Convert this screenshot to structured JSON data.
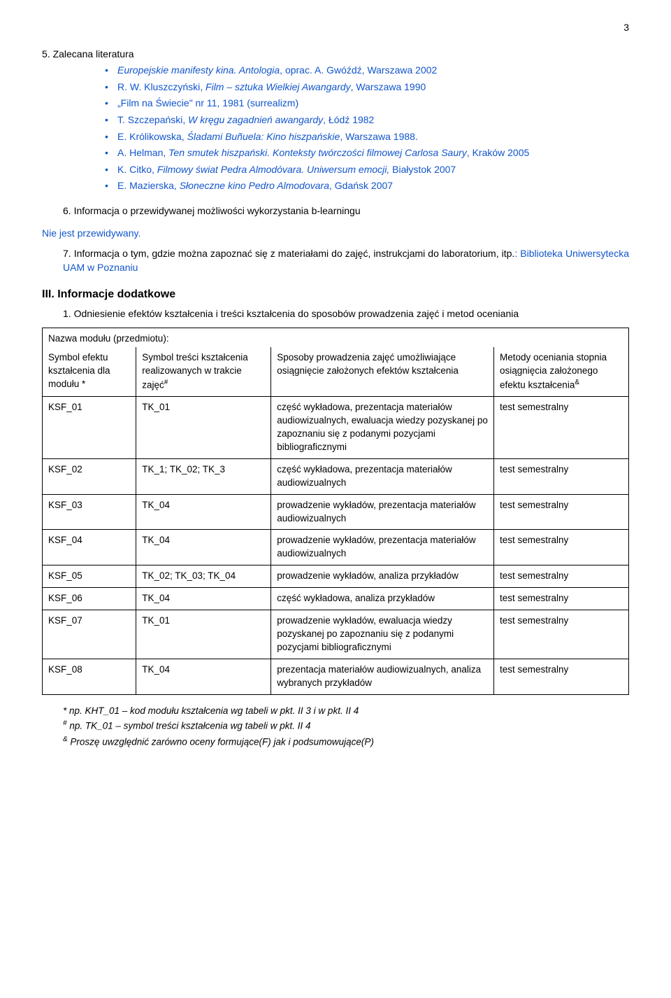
{
  "page_number": "3",
  "section5": {
    "title": "5.  Zalecana literatura",
    "items": [
      {
        "pre": "",
        "it": "Europejskie manifesty kina. Antologia",
        "post": ", oprac. A. Gwóźdź, Warszawa 2002"
      },
      {
        "pre": "R. W. Kluszczyński, ",
        "it": "Film – sztuka Wielkiej Awangardy",
        "post": ", Warszawa 1990"
      },
      {
        "pre": "",
        "it": "",
        "post": "„Film na Świecie\" nr 11, 1981 (surrealizm)"
      },
      {
        "pre": "T. Szczepański, ",
        "it": "W kręgu zagadnień awangardy",
        "post": ", Łódź 1982"
      },
      {
        "pre": "E. Królikowska, ",
        "it": "Śladami Buñuela: Kino hiszpańskie",
        "post": ", Warszawa 1988."
      },
      {
        "pre": " A. Helman, ",
        "it": "Ten smutek hiszpański. Konteksty twórczości filmowej Carlosa Saury",
        "post": ", Kraków 2005"
      },
      {
        "pre": "K. Citko, ",
        "it": "Filmowy świat Pedra Almodóvara. Uniwersum emocji, ",
        "post": "Białystok 2007"
      },
      {
        "pre": "E. Mazierska, ",
        "it": "Słoneczne kino Pedro Almodovara",
        "post": ", Gdańsk 2007"
      }
    ]
  },
  "item6": "6.  Informacja o przewidywanej możliwości wykorzystania b-learningu",
  "not_planned": "Nie jest przewidywany.",
  "item7_pre": "7.  Informacja o tym, gdzie można zapoznać się z materiałami do zajęć, instrukcjami do laboratorium, itp.",
  "item7_blue": ": Biblioteka Uniwersytecka UAM w Poznaniu",
  "section3_title": "III. Informacje dodatkowe",
  "section3_item1": "1.  Odniesienie efektów kształcenia i treści kształcenia do sposobów prowadzenia  zajęć i metod oceniania",
  "table": {
    "caption": "Nazwa modułu (przedmiotu):",
    "headers": {
      "c1": "Symbol efektu kształcenia dla modułu *",
      "c2_a": "Symbol treści kształcenia realizowanych w trakcie zajęć",
      "c2_sup": "#",
      "c3": "Sposoby prowadzenia zajęć umożliwiające osiągnięcie założonych efektów kształcenia",
      "c4_a": "Metody oceniania stopnia osiągnięcia założonego efektu kształcenia",
      "c4_sup": "&"
    },
    "rows": [
      {
        "c1": "KSF_01",
        "c2": "TK_01",
        "c3": "część wykładowa, prezentacja materiałów audiowizualnych, ewaluacja wiedzy pozyskanej po zapoznaniu się z podanymi pozycjami bibliograficznymi",
        "c4": "test semestralny"
      },
      {
        "c1": "KSF_02",
        "c2": "TK_1; TK_02; TK_3",
        "c3": "część wykładowa, prezentacja materiałów audiowizualnych",
        "c4": "test semestralny"
      },
      {
        "c1": "KSF_03",
        "c2": "TK_04",
        "c3": "prowadzenie wykładów, prezentacja materiałów audiowizualnych",
        "c4": "test semestralny"
      },
      {
        "c1": "KSF_04",
        "c2": "TK_04",
        "c3": "prowadzenie wykładów, prezentacja materiałów audiowizualnych",
        "c4": "test semestralny"
      },
      {
        "c1": "KSF_05",
        "c2": "TK_02; TK_03; TK_04",
        "c3": "prowadzenie wykładów, analiza przykładów",
        "c4": "test semestralny"
      },
      {
        "c1": "KSF_06",
        "c2": "TK_04",
        "c3": "część wykładowa, analiza przykładów",
        "c4": "test semestralny"
      },
      {
        "c1": "KSF_07",
        "c2": "TK_01",
        "c3": "prowadzenie wykładów, ewaluacja wiedzy pozyskanej po zapoznaniu się z podanymi pozycjami bibliograficznymi",
        "c4": "test semestralny"
      },
      {
        "c1": "KSF_08",
        "c2": "TK_04",
        "c3": "prezentacja materiałów audiowizualnych, analiza wybranych przykładów",
        "c4": "test semestralny"
      }
    ],
    "col_widths": [
      "16%",
      "23%",
      "38%",
      "23%"
    ]
  },
  "footnotes": {
    "f1": "* np. KHT_01 – kod modułu kształcenia wg tabeli w pkt. II 3 i w pkt. II 4",
    "f2_sup": "#",
    "f2": " np. TK_01 – symbol treści kształcenia wg tabeli w pkt. II 4",
    "f3_sup": "&",
    "f3": " Proszę uwzględnić zarówno oceny formujące(F) jak i podsumowujące(P)"
  }
}
